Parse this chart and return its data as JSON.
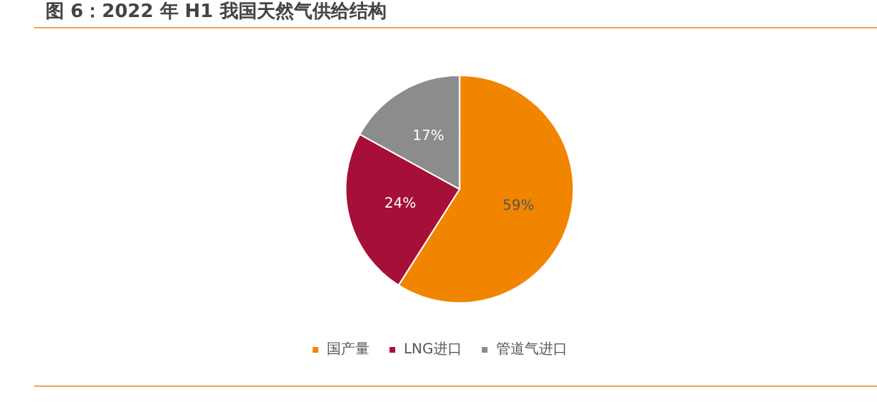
{
  "chart_data": {
    "type": "pie",
    "title": "图 6：2022 年 H1 我国天然气供给结构",
    "categories": [
      "国产量",
      "LNG进口",
      "管道气进口"
    ],
    "values": [
      59,
      24,
      17
    ],
    "colors": [
      "#f28500",
      "#a50f38",
      "#8c8c8c"
    ],
    "value_labels": [
      "59%",
      "24%",
      "17%"
    ],
    "legend": "bottom"
  }
}
